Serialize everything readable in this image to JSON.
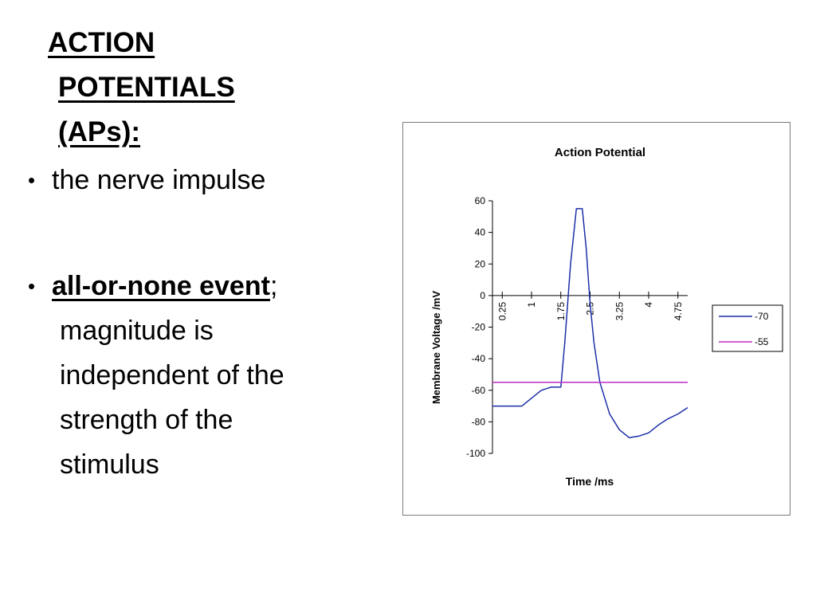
{
  "slide": {
    "title_lines": [
      "ACTION",
      "POTENTIALS",
      "(APs):"
    ],
    "bullets": [
      {
        "text": "the nerve impulse"
      },
      {
        "emphasis": "all-or-none event",
        "punct": ";",
        "lines": [
          "magnitude is",
          "independent of the",
          "strength of the",
          "stimulus"
        ]
      }
    ],
    "bullet_glyph": "•"
  },
  "chart_data": {
    "type": "line",
    "title": "Action Potential",
    "xlabel": "Time /ms",
    "ylabel": "Membrane Voltage /mV",
    "ylim": [
      -100,
      60
    ],
    "yticks": [
      60,
      40,
      20,
      0,
      -20,
      -40,
      -60,
      -80,
      -100
    ],
    "xlim": [
      0,
      5
    ],
    "xticks": [
      "0.25",
      "1",
      "1.75",
      "2.5",
      "3.25",
      "4",
      "4.75"
    ],
    "xtick_values": [
      0.25,
      1,
      1.75,
      2.5,
      3.25,
      4,
      4.75
    ],
    "legend_position": "right",
    "grid": false,
    "series": [
      {
        "name": "-70",
        "color": "#1c2fa8",
        "x": [
          0,
          0.25,
          0.5,
          0.75,
          1,
          1.25,
          1.5,
          1.75,
          1.85,
          2.0,
          2.15,
          2.3,
          2.4,
          2.5,
          2.6,
          2.75,
          3.0,
          3.25,
          3.5,
          3.75,
          4.0,
          4.25,
          4.5,
          4.75,
          5.0
        ],
        "values": [
          -70,
          -70,
          -70,
          -70,
          -65,
          -60,
          -58,
          -58,
          -30,
          20,
          55,
          55,
          30,
          -5,
          -30,
          -55,
          -75,
          -85,
          -90,
          -89,
          -87,
          -82,
          -78,
          -75,
          -71
        ]
      },
      {
        "name": "-55",
        "color": "#bf2cc8",
        "x": [
          0,
          5
        ],
        "values": [
          -55,
          -55
        ]
      }
    ]
  }
}
